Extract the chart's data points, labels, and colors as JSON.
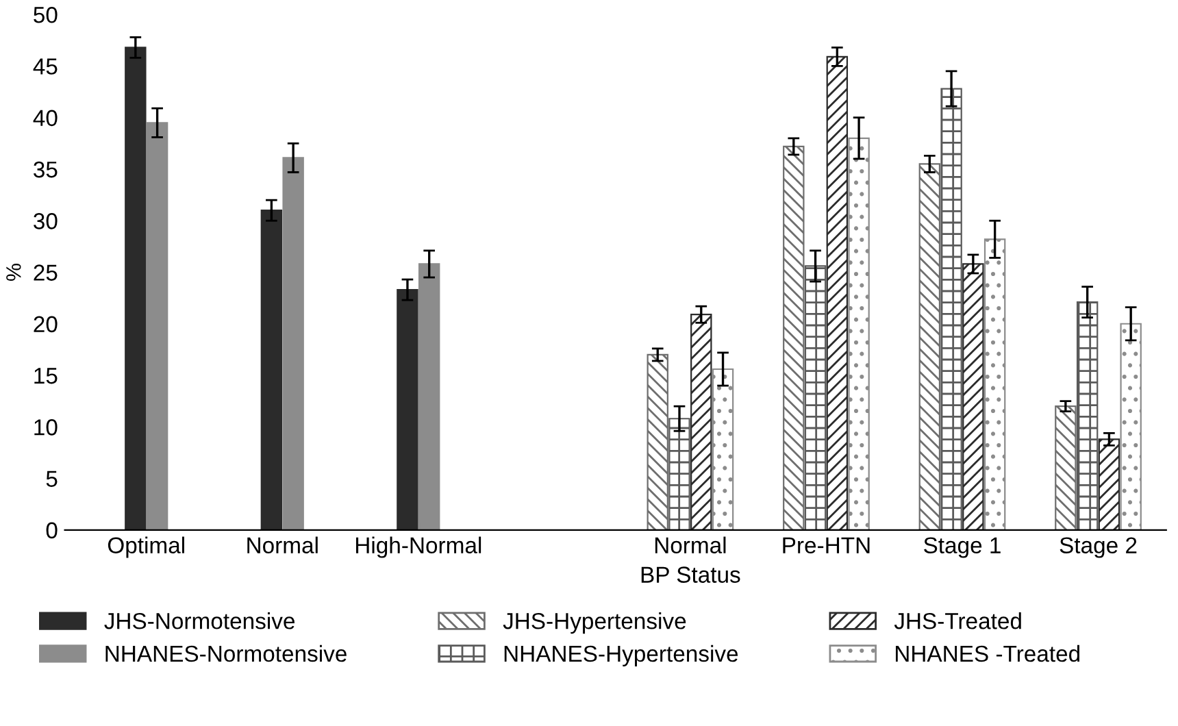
{
  "chart_data": {
    "type": "bar",
    "ylabel": "%",
    "xlabel": "BP Status",
    "categories": [
      "Optimal",
      "Normal",
      "High-Normal",
      null,
      "Normal",
      "Pre-HTN",
      "Stage 1",
      "Stage 2"
    ],
    "series": [
      {
        "name": "JHS-Normotensive",
        "color": "#2b2b2b",
        "values": [
          46.8,
          31.0,
          23.3,
          null,
          null,
          null,
          null,
          null
        ],
        "errors": [
          1.0,
          1.0,
          1.0,
          null,
          null,
          null,
          null,
          null
        ]
      },
      {
        "name": "NHANES-Normotensive",
        "color": "#8c8c8c",
        "values": [
          39.5,
          36.1,
          25.8,
          null,
          null,
          null,
          null,
          null
        ],
        "errors": [
          1.4,
          1.4,
          1.3,
          null,
          null,
          null,
          null,
          null
        ]
      },
      {
        "name": "JHS-Hypertensive",
        "color": "#6e6e6e",
        "values": [
          null,
          null,
          null,
          null,
          17.0,
          37.2,
          35.5,
          12.0
        ],
        "errors": [
          null,
          null,
          null,
          null,
          0.6,
          0.8,
          0.8,
          0.5
        ]
      },
      {
        "name": "NHANES-Hypertensive",
        "color": "#5a5a5a",
        "values": [
          null,
          null,
          null,
          null,
          10.8,
          25.6,
          42.8,
          22.1
        ],
        "errors": [
          null,
          null,
          null,
          null,
          1.2,
          1.5,
          1.7,
          1.5
        ]
      },
      {
        "name": "JHS-Treated",
        "color": "#2b2b2b",
        "values": [
          null,
          null,
          null,
          null,
          20.9,
          45.9,
          25.8,
          8.8
        ],
        "errors": [
          null,
          null,
          null,
          null,
          0.8,
          0.9,
          0.9,
          0.6
        ]
      },
      {
        "name": "NHANES -Treated",
        "color": "#8c8c8c",
        "values": [
          null,
          null,
          null,
          null,
          15.6,
          38.0,
          28.2,
          20.0
        ],
        "errors": [
          null,
          null,
          null,
          null,
          1.6,
          2.0,
          1.8,
          1.6
        ]
      }
    ],
    "ylim": [
      0,
      50
    ],
    "yticks": [
      0,
      5,
      10,
      15,
      20,
      25,
      30,
      35,
      40,
      45,
      50
    ],
    "grid": false,
    "legend": "bottom"
  }
}
